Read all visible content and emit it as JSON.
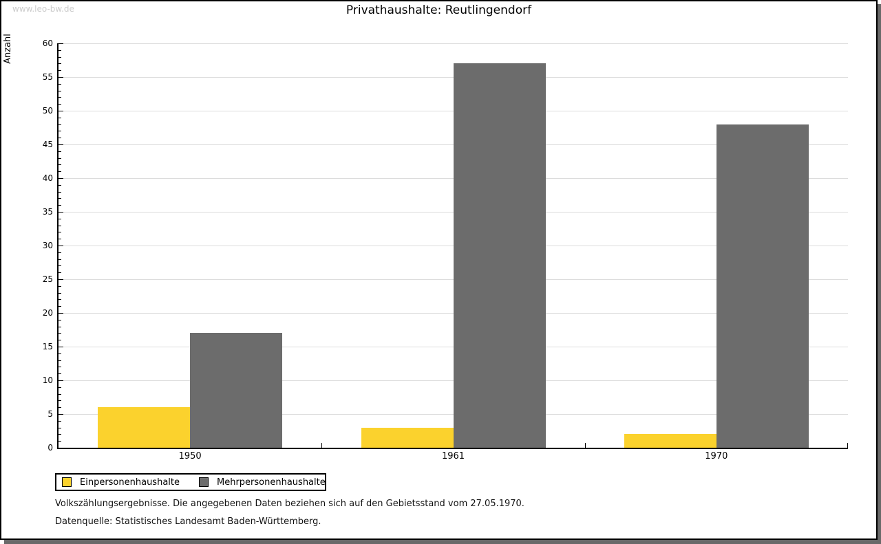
{
  "page": {
    "watermark": "www.leo-bw.de"
  },
  "chart_data": {
    "type": "bar",
    "title": "Privathaushalte: Reutlingendorf",
    "xlabel": "",
    "ylabel": "Anzahl",
    "categories": [
      "1950",
      "1961",
      "1970"
    ],
    "series": [
      {
        "name": "Einpersonenhaushalte",
        "color": "#fbd22d",
        "values": [
          6,
          3,
          2
        ]
      },
      {
        "name": "Mehrpersonenhaushalte",
        "color": "#6c6c6c",
        "values": [
          17,
          57,
          48
        ]
      }
    ],
    "ylim": [
      0,
      60
    ],
    "ytick_step": 5,
    "yminor_step": 1,
    "grid": true,
    "legend_position": "bottom-left"
  },
  "footer": {
    "line1": "Volkszählungsergebnisse. Die angegebenen Daten beziehen sich auf den Gebietsstand vom 27.05.1970.",
    "line2": "Datenquelle: Statistisches Landesamt Baden-Württemberg."
  }
}
